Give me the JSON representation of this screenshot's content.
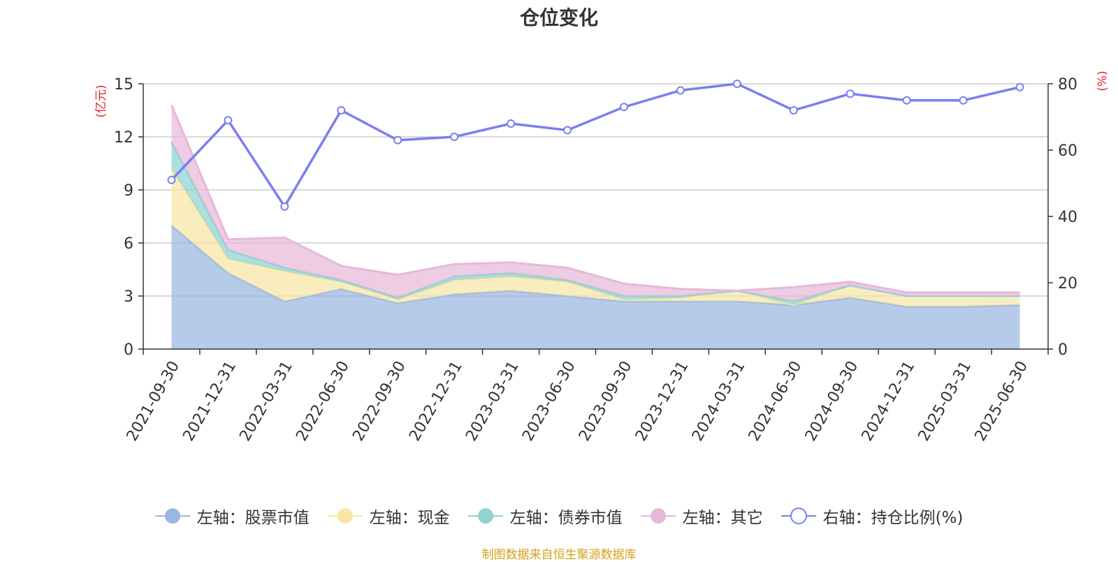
{
  "chart_data": {
    "type": "area",
    "title": "仓位变化",
    "x": [
      "2021-09-30",
      "2021-12-31",
      "2022-03-31",
      "2022-06-30",
      "2022-09-30",
      "2022-12-31",
      "2023-03-31",
      "2023-06-30",
      "2023-09-30",
      "2023-12-31",
      "2024-03-31",
      "2024-06-30",
      "2024-09-30",
      "2024-12-31",
      "2025-03-31",
      "2025-06-30"
    ],
    "left_axis": {
      "unit_label": "(亿元)",
      "ylim": [
        0,
        15
      ],
      "ticks": [
        "0",
        "3",
        "6",
        "9",
        "12",
        "15"
      ]
    },
    "right_axis": {
      "unit_label": "(%)",
      "ylim": [
        0,
        80
      ],
      "ticks": [
        "0",
        "20",
        "40",
        "60",
        "80"
      ]
    },
    "series": [
      {
        "name": "左轴：股票市值",
        "axis": "left",
        "kind": "stacked-area",
        "color": "#9ab7e0",
        "values": [
          7.0,
          4.3,
          2.7,
          3.4,
          2.6,
          3.1,
          3.3,
          3.0,
          2.7,
          2.7,
          2.7,
          2.5,
          2.9,
          2.4,
          2.4,
          2.5
        ]
      },
      {
        "name": "左轴：现金",
        "axis": "left",
        "kind": "stacked-area",
        "color": "#f7e6a6",
        "values": [
          3.2,
          0.8,
          1.7,
          0.4,
          0.2,
          0.8,
          0.8,
          0.8,
          0.1,
          0.2,
          0.6,
          0.0,
          0.7,
          0.6,
          0.6,
          0.5
        ]
      },
      {
        "name": "左轴：债券市值",
        "axis": "left",
        "kind": "stacked-area",
        "color": "#8fd3d3",
        "values": [
          1.5,
          0.5,
          0.2,
          0.1,
          0.1,
          0.2,
          0.2,
          0.1,
          0.2,
          0.1,
          0.0,
          0.2,
          0.0,
          0.0,
          0.0,
          0.0
        ]
      },
      {
        "name": "左轴：其它",
        "axis": "left",
        "kind": "stacked-area",
        "color": "#e6b8da",
        "values": [
          2.1,
          0.6,
          1.7,
          0.8,
          1.3,
          0.7,
          0.6,
          0.7,
          0.7,
          0.4,
          0.0,
          0.8,
          0.2,
          0.2,
          0.2,
          0.2
        ]
      },
      {
        "name": "右轴：持仓比例(%)",
        "axis": "right",
        "kind": "line",
        "color": "#7b7ef0",
        "values": [
          51,
          69,
          43,
          72,
          63,
          64,
          68,
          66,
          73,
          78,
          80,
          72,
          77,
          75,
          75,
          79
        ]
      }
    ],
    "grid": true,
    "legend_position": "bottom"
  },
  "source_note": "制图数据来自恒生聚源数据库"
}
